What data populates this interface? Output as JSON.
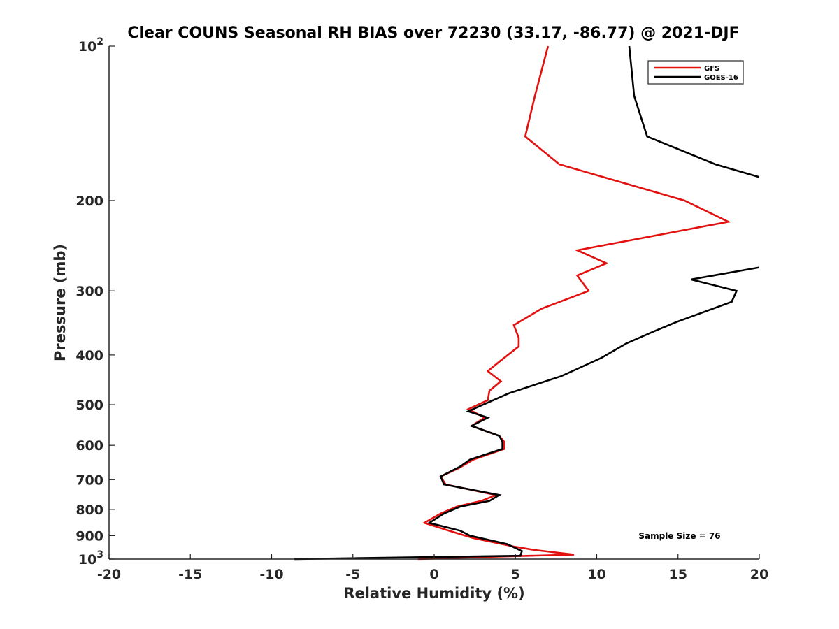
{
  "chart_data": {
    "type": "line",
    "title": "Clear COUNS Seasonal RH BIAS over 72230 (33.17, -86.77) @ 2021-DJF",
    "xlabel": "Relative Humidity (%)",
    "ylabel": "Pressure (mb)",
    "xlim": [
      -20,
      20
    ],
    "ylim": [
      100,
      1000
    ],
    "y_scale": "log",
    "y_reversed": true,
    "grid": false,
    "legend_position": "top-right",
    "x_ticks": [
      "-20",
      "-15",
      "-10",
      "-5",
      "0",
      "5",
      "10",
      "15",
      "20"
    ],
    "x_tick_values": [
      -20,
      -15,
      -10,
      -5,
      0,
      5,
      10,
      15,
      20
    ],
    "y_ticks": [
      {
        "value": 100,
        "base": "10",
        "exp": "2"
      },
      {
        "value": 200,
        "label": "200"
      },
      {
        "value": 300,
        "label": "300"
      },
      {
        "value": 400,
        "label": "400"
      },
      {
        "value": 500,
        "label": "500"
      },
      {
        "value": 600,
        "label": "600"
      },
      {
        "value": 700,
        "label": "700"
      },
      {
        "value": 800,
        "label": "800"
      },
      {
        "value": 900,
        "label": "900"
      },
      {
        "value": 1000,
        "base": "10",
        "exp": "3"
      }
    ],
    "annotation": "Sample Size = 76",
    "series": [
      {
        "name": "GFS",
        "color": "#e3110f",
        "points": [
          [
            7.0,
            100
          ],
          [
            6.2,
            125
          ],
          [
            5.6,
            150
          ],
          [
            7.7,
            170
          ],
          [
            15.4,
            200
          ],
          [
            18.1,
            220
          ],
          [
            8.8,
            250
          ],
          [
            10.6,
            265
          ],
          [
            8.8,
            280
          ],
          [
            9.5,
            300
          ],
          [
            6.6,
            325
          ],
          [
            4.9,
            350
          ],
          [
            5.2,
            370
          ],
          [
            5.2,
            385
          ],
          [
            4.1,
            410
          ],
          [
            3.3,
            430
          ],
          [
            4.1,
            450
          ],
          [
            3.4,
            470
          ],
          [
            3.3,
            490
          ],
          [
            2.1,
            510
          ],
          [
            3.1,
            530
          ],
          [
            2.3,
            550
          ],
          [
            4.0,
            575
          ],
          [
            4.3,
            590
          ],
          [
            4.3,
            610
          ],
          [
            2.4,
            640
          ],
          [
            1.5,
            665
          ],
          [
            0.4,
            690
          ],
          [
            0.7,
            715
          ],
          [
            3.8,
            750
          ],
          [
            2.9,
            770
          ],
          [
            1.4,
            790
          ],
          [
            0.4,
            815
          ],
          [
            -0.6,
            850
          ],
          [
            0.9,
            880
          ],
          [
            2.4,
            910
          ],
          [
            4.9,
            945
          ],
          [
            6.2,
            960
          ],
          [
            8.6,
            980
          ],
          [
            3.3,
            990
          ],
          [
            -1.0,
            1000
          ]
        ]
      },
      {
        "name": "GOES-16",
        "color": "#000000",
        "points": [
          [
            12.0,
            100
          ],
          [
            12.3,
            125
          ],
          [
            13.1,
            150
          ],
          [
            17.3,
            170
          ],
          [
            20.0,
            180
          ],
          [
            null,
            null
          ],
          [
            20.0,
            270
          ],
          [
            15.8,
            285
          ],
          [
            18.6,
            300
          ],
          [
            18.3,
            315
          ],
          [
            14.9,
            345
          ],
          [
            13.5,
            360
          ],
          [
            11.8,
            380
          ],
          [
            10.3,
            405
          ],
          [
            8.5,
            430
          ],
          [
            7.8,
            440
          ],
          [
            4.6,
            475
          ],
          [
            2.7,
            505
          ],
          [
            2.1,
            515
          ],
          [
            3.3,
            530
          ],
          [
            2.3,
            550
          ],
          [
            4.0,
            575
          ],
          [
            4.2,
            590
          ],
          [
            4.2,
            610
          ],
          [
            2.2,
            640
          ],
          [
            1.6,
            660
          ],
          [
            0.4,
            690
          ],
          [
            0.6,
            715
          ],
          [
            4.0,
            750
          ],
          [
            3.4,
            770
          ],
          [
            1.6,
            790
          ],
          [
            0.6,
            815
          ],
          [
            -0.3,
            850
          ],
          [
            1.6,
            880
          ],
          [
            2.2,
            900
          ],
          [
            4.5,
            935
          ],
          [
            5.4,
            965
          ],
          [
            5.3,
            985
          ],
          [
            -8.6,
            1000
          ]
        ]
      }
    ]
  }
}
